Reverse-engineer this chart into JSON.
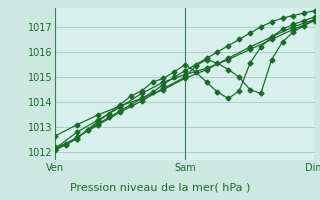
{
  "xlabel": "Pression niveau de la mer( hPa )",
  "bg_color": "#cce8e0",
  "plot_bg_color": "#d8f0ec",
  "grid_color": "#a8c8c0",
  "line_color": "#1a6b2a",
  "vline_color": "#3a7a5a",
  "xlim": [
    0,
    48
  ],
  "ylim": [
    1011.7,
    1017.75
  ],
  "yticks": [
    1012,
    1013,
    1014,
    1015,
    1016,
    1017
  ],
  "xtick_labels": [
    "Ven",
    "Sam",
    "Dim"
  ],
  "xtick_positions": [
    0,
    24,
    48
  ],
  "vlines": [
    0,
    24,
    48
  ],
  "series": [
    [
      0.0,
      1012.1,
      2,
      1012.3,
      4,
      1012.55,
      6,
      1012.9,
      8,
      1013.15,
      10,
      1013.4,
      12,
      1013.65,
      14,
      1013.9,
      16,
      1014.15,
      18,
      1014.4,
      20,
      1014.7,
      22,
      1015.0,
      24,
      1015.25,
      26,
      1015.5,
      28,
      1015.75,
      30,
      1016.0,
      32,
      1016.25,
      34,
      1016.5,
      36,
      1016.75,
      38,
      1017.0,
      40,
      1017.2,
      42,
      1017.35,
      44,
      1017.45,
      46,
      1017.55,
      48,
      1017.65
    ],
    [
      0.0,
      1012.65,
      4,
      1013.1,
      8,
      1013.5,
      12,
      1013.85,
      16,
      1014.15,
      20,
      1014.5,
      24,
      1014.95,
      28,
      1015.3,
      32,
      1015.75,
      36,
      1016.2,
      40,
      1016.6,
      44,
      1017.0,
      48,
      1017.3
    ],
    [
      0.0,
      1012.2,
      2,
      1012.35,
      4,
      1012.55,
      6,
      1012.9,
      8,
      1013.25,
      10,
      1013.55,
      12,
      1013.9,
      14,
      1014.25,
      16,
      1014.45,
      18,
      1014.8,
      20,
      1014.95,
      22,
      1015.2,
      24,
      1015.5,
      26,
      1015.2,
      28,
      1014.8,
      30,
      1014.4,
      32,
      1014.15,
      34,
      1014.45,
      36,
      1015.55,
      38,
      1016.2,
      40,
      1016.6,
      42,
      1016.9,
      44,
      1017.1,
      46,
      1017.25,
      48,
      1017.4
    ],
    [
      0.0,
      1012.15,
      4,
      1012.8,
      8,
      1013.3,
      12,
      1013.8,
      16,
      1014.35,
      20,
      1014.8,
      24,
      1015.1,
      28,
      1015.35,
      32,
      1015.7,
      36,
      1016.1,
      40,
      1016.5,
      44,
      1016.9,
      48,
      1017.25
    ],
    [
      0.0,
      1012.1,
      4,
      1012.6,
      8,
      1013.1,
      12,
      1013.6,
      16,
      1014.05,
      20,
      1014.55,
      24,
      1015.0,
      26,
      1015.45,
      28,
      1015.7,
      30,
      1015.55,
      32,
      1015.3,
      34,
      1015.0,
      36,
      1014.5,
      38,
      1014.35,
      40,
      1015.7,
      42,
      1016.4,
      44,
      1016.8,
      46,
      1017.05,
      48,
      1017.3
    ]
  ],
  "xlabel_fontsize": 8,
  "tick_fontsize": 7,
  "marker_size": 2.5,
  "linewidth": 0.9
}
